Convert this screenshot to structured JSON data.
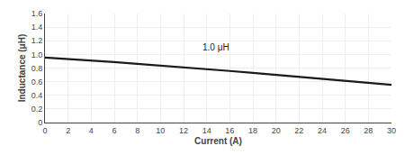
{
  "chart_data": {
    "type": "line",
    "x": [
      0,
      2,
      4,
      6,
      8,
      10,
      12,
      14,
      16,
      18,
      20,
      22,
      24,
      26,
      28,
      30
    ],
    "values": [
      0.955,
      0.935,
      0.912,
      0.888,
      0.862,
      0.838,
      0.812,
      0.785,
      0.757,
      0.728,
      0.7,
      0.67,
      0.64,
      0.612,
      0.582,
      0.555
    ],
    "color": "#1a1a1a",
    "xlabel": "Current (A)",
    "ylabel": "Inductance (μH)",
    "annotations": [
      {
        "text": "1.0 μH",
        "x": 13.5,
        "y": 1.01
      }
    ],
    "xlim": [
      0,
      30
    ],
    "ylim": [
      0,
      1.6
    ],
    "xticks": [
      0,
      2,
      4,
      6,
      8,
      10,
      12,
      14,
      16,
      18,
      20,
      22,
      24,
      26,
      28,
      30
    ],
    "yticks": [
      0,
      0.2,
      0.4,
      0.6,
      0.8,
      {
        "value": 1,
        "label": "1.0"
      },
      1.2,
      1.4,
      1.6
    ],
    "grid": true
  }
}
